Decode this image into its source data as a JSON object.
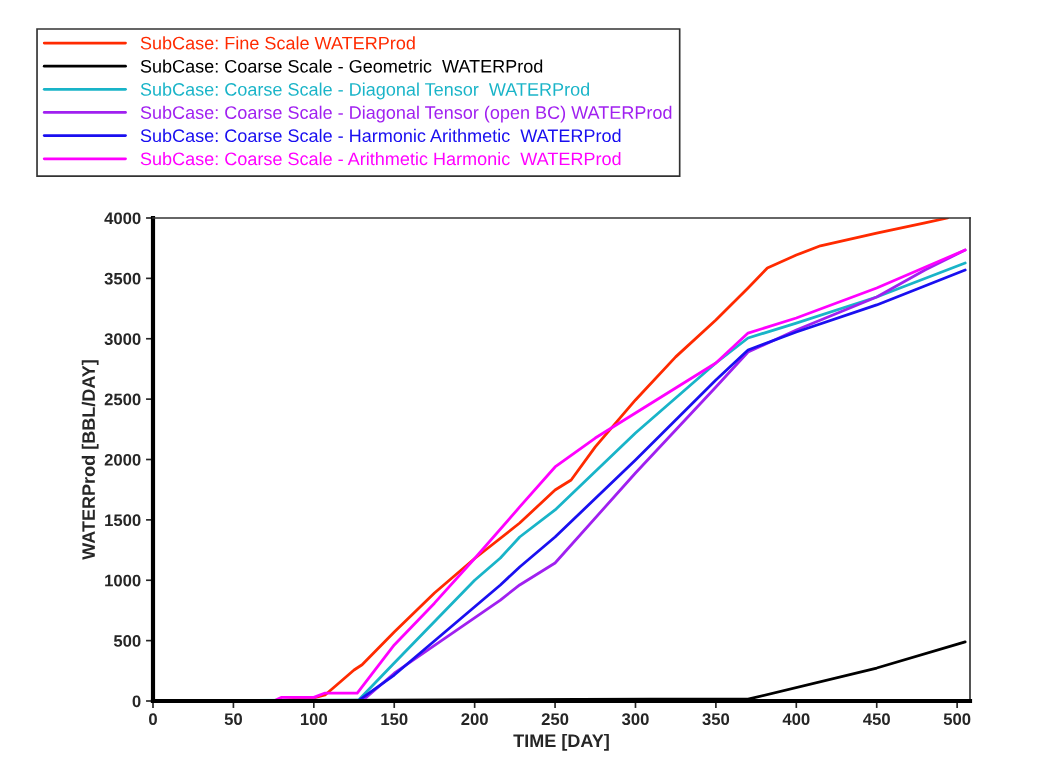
{
  "chart_data": {
    "type": "line",
    "xlabel": "TIME [DAY]",
    "ylabel": "WATERProd [BBL/DAY]",
    "xlim": [
      0,
      508
    ],
    "ylim": [
      0,
      4000
    ],
    "xticks": [
      0,
      50,
      100,
      150,
      200,
      250,
      300,
      350,
      400,
      450,
      500
    ],
    "yticks": [
      0,
      500,
      1000,
      1500,
      2000,
      2500,
      3000,
      3500,
      4000
    ],
    "grid": false,
    "legend": "top",
    "marker": "none",
    "line_style": "solid",
    "series": [
      {
        "name": "SubCase: Fine Scale WATERProd",
        "color": "#ff2a00",
        "x": [
          0,
          75,
          100,
          107,
          125,
          130,
          150,
          175,
          200,
          228,
          250,
          260,
          275,
          300,
          325,
          350,
          370,
          382,
          400,
          415,
          450,
          480,
          494
        ],
        "values": [
          0,
          0,
          25,
          50,
          257,
          300,
          571,
          894,
          1180,
          1474,
          1747,
          1830,
          2104,
          2493,
          2850,
          3155,
          3420,
          3586,
          3693,
          3770,
          3875,
          3960,
          4000
        ]
      },
      {
        "name": "SubCase: Coarse Scale - Geometric  WATERProd",
        "color": "#000000",
        "x": [
          0,
          310,
          370,
          450,
          505
        ],
        "values": [
          0,
          15,
          15,
          273,
          489
        ]
      },
      {
        "name": "SubCase: Coarse Scale - Diagonal Tensor  WATERProd",
        "color": "#19b4c8",
        "x": [
          0,
          128,
          150,
          200,
          216,
          228,
          250,
          300,
          350,
          370,
          400,
          450,
          505
        ],
        "values": [
          0,
          10,
          315,
          1000,
          1184,
          1358,
          1582,
          2219,
          2799,
          3006,
          3130,
          3346,
          3627
        ]
      },
      {
        "name": "SubCase: Coarse Scale - Diagonal Tensor (open BC) WATERProd",
        "color": "#a020f0",
        "x": [
          0,
          130,
          150,
          216,
          228,
          250,
          300,
          350,
          370,
          400,
          450,
          480,
          505
        ],
        "values": [
          0,
          0,
          230,
          836,
          961,
          1143,
          1888,
          2600,
          2890,
          3072,
          3346,
          3569,
          3735
        ]
      },
      {
        "name": "SubCase: Coarse Scale - Harmonic Arithmetic  WATERProd",
        "color": "#1a0ff0",
        "x": [
          0,
          128,
          150,
          216,
          228,
          250,
          300,
          350,
          370,
          400,
          450,
          505
        ],
        "values": [
          0,
          5,
          215,
          961,
          1110,
          1358,
          1996,
          2658,
          2907,
          3056,
          3280,
          3569
        ]
      },
      {
        "name": "SubCase: Coarse Scale - Arithmetic Harmonic  WATERProd",
        "color": "#ff00ff",
        "x": [
          0,
          75,
          80,
          100,
          107,
          127,
          150,
          175,
          200,
          228,
          250,
          275,
          300,
          350,
          370,
          400,
          450,
          505
        ],
        "values": [
          0,
          0,
          30,
          30,
          66,
          66,
          464,
          810,
          1180,
          1607,
          1938,
          2178,
          2385,
          2799,
          3047,
          3172,
          3420,
          3735
        ]
      }
    ]
  }
}
